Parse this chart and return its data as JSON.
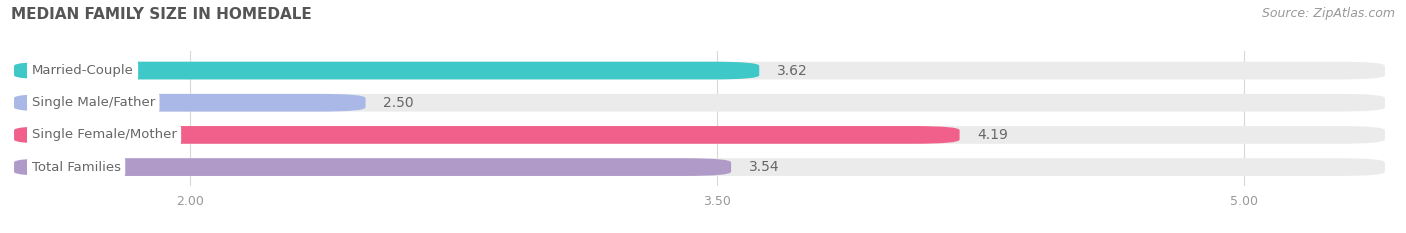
{
  "title": "MEDIAN FAMILY SIZE IN HOMEDALE",
  "source": "Source: ZipAtlas.com",
  "categories": [
    "Married-Couple",
    "Single Male/Father",
    "Single Female/Mother",
    "Total Families"
  ],
  "values": [
    3.62,
    2.5,
    4.19,
    3.54
  ],
  "bar_colors": [
    "#3ec8c8",
    "#aab8e8",
    "#f0608a",
    "#b09ac8"
  ],
  "bar_bg_color": "#ebebeb",
  "xmin": 1.5,
  "xmax": 5.4,
  "xticks": [
    2.0,
    3.5,
    5.0
  ],
  "background_color": "#ffffff",
  "title_fontsize": 11,
  "bar_label_fontsize": 10,
  "category_fontsize": 9.5,
  "source_fontsize": 9,
  "text_color": "#666666",
  "title_color": "#555555",
  "value_text_color": "#666666"
}
